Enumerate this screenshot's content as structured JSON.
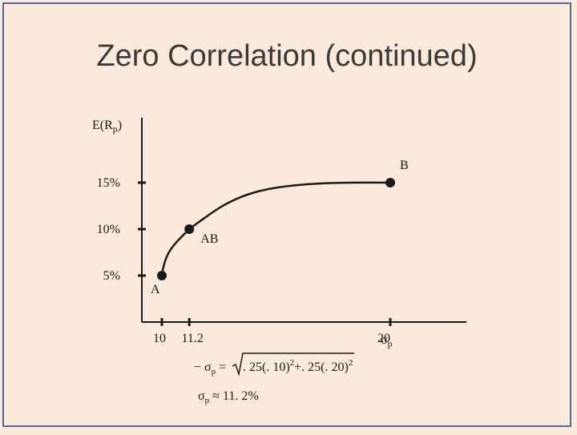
{
  "slide": {
    "title": "Zero Correlation (continued)"
  },
  "chart_data": {
    "type": "line",
    "ylabel_main": "E(R",
    "ylabel_sub": "p",
    "ylabel_close": ")",
    "xlabel_sigma": "σ",
    "xlabel_sub": "p",
    "y_ticks": [
      {
        "value": 5,
        "label": "5%"
      },
      {
        "value": 10,
        "label": "10%"
      },
      {
        "value": 15,
        "label": "15%"
      }
    ],
    "x_ticks": [
      {
        "value": 10,
        "label": "10"
      },
      {
        "value": 11.2,
        "label": "11.2"
      },
      {
        "value": 20,
        "label": "20"
      }
    ],
    "points": [
      {
        "name": "A",
        "x": 10,
        "y": 5
      },
      {
        "name": "AB",
        "x": 11.2,
        "y": 10
      },
      {
        "name": "B",
        "x": 20,
        "y": 15
      }
    ],
    "xlim": [
      9.5,
      24
    ],
    "ylim": [
      0,
      18
    ]
  },
  "formula": {
    "line1_prefix": "− σ",
    "line1_sub": "p",
    "line1_eq": " = ",
    "radicand_a": ". 25(. 10)",
    "exp_a": "2",
    "radicand_plus": "+. 25(. 20)",
    "exp_b": "2",
    "line2_sigma": "σ",
    "line2_sub": "p",
    "line2_rest": " ≈ 11. 2%"
  }
}
